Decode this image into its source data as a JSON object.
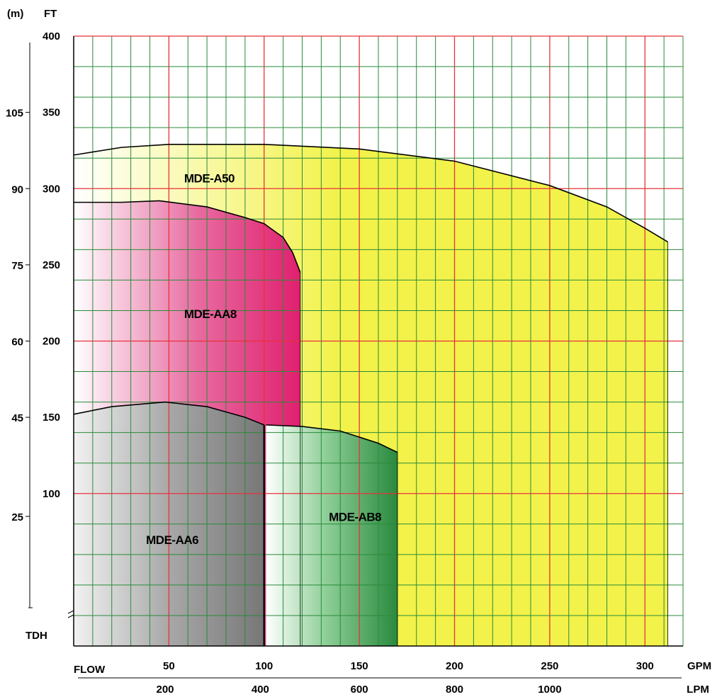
{
  "chart_data": {
    "type": "area",
    "colors": {
      "major_grid": "#e8323a",
      "minor_grid": "#2a8a3a",
      "a50": "#f2f24a",
      "aa8": "#e0206e",
      "aa6": "#777777",
      "ab8": "#2a8a3e",
      "outline": "#000000"
    },
    "units": {
      "head_m": "(m)",
      "head_ft": "FT",
      "flow_gpm": "GPM",
      "flow_lpm": "LPM",
      "flow_label": "FLOW",
      "tdh_label": "TDH"
    },
    "x_gpm": {
      "range": [
        0,
        320
      ],
      "ticks": [
        50,
        100,
        150,
        200,
        250,
        300
      ]
    },
    "y_ft": {
      "range": [
        0,
        400
      ],
      "ticks": [
        100,
        150,
        200,
        250,
        300,
        350,
        400
      ],
      "tick_labels": [
        "100",
        "150",
        "200",
        "250",
        "300",
        "350",
        "400"
      ]
    },
    "x_lpm_ticks": [
      {
        "gpm": 48,
        "label": "200"
      },
      {
        "gpm": 98,
        "label": "400"
      },
      {
        "gpm": 150,
        "label": "600"
      },
      {
        "gpm": 200,
        "label": "800"
      },
      {
        "gpm": 250,
        "label": "1000"
      },
      {
        "gpm": 300,
        "label": "LPM"
      }
    ],
    "y_m_ticks": [
      {
        "ft": 350,
        "label": "105"
      },
      {
        "ft": 300,
        "label": "90"
      },
      {
        "ft": 250,
        "label": "75"
      },
      {
        "ft": 200,
        "label": "60"
      },
      {
        "ft": 150,
        "label": "45"
      },
      {
        "ft": 85,
        "label": "25"
      }
    ],
    "series": [
      {
        "name": "MDE-A50",
        "color_key": "a50",
        "label_at": [
          58,
          304
        ],
        "curve": [
          [
            0,
            322
          ],
          [
            25,
            327
          ],
          [
            50,
            329
          ],
          [
            100,
            329
          ],
          [
            150,
            326
          ],
          [
            200,
            318
          ],
          [
            250,
            302
          ],
          [
            280,
            288
          ],
          [
            300,
            274
          ],
          [
            312,
            265
          ]
        ],
        "x_end": 312
      },
      {
        "name": "MDE-AA8",
        "color_key": "aa8",
        "label_at": [
          58,
          215
        ],
        "curve": [
          [
            0,
            291
          ],
          [
            25,
            291
          ],
          [
            45,
            292
          ],
          [
            70,
            288
          ],
          [
            90,
            281
          ],
          [
            100,
            277
          ],
          [
            110,
            268
          ],
          [
            115,
            258
          ],
          [
            119,
            245
          ]
        ],
        "x_end": 119
      },
      {
        "name": "MDE-AA6",
        "color_key": "aa6",
        "label_at": [
          38,
          67
        ],
        "curve": [
          [
            0,
            152
          ],
          [
            20,
            157
          ],
          [
            48,
            160
          ],
          [
            70,
            157
          ],
          [
            90,
            150
          ],
          [
            100,
            145
          ]
        ],
        "x_end": 100
      },
      {
        "name": "MDE-AB8",
        "color_key": "ab8",
        "label_at": [
          134,
          82
        ],
        "curve": [
          [
            101,
            145
          ],
          [
            120,
            144
          ],
          [
            140,
            141
          ],
          [
            160,
            133
          ],
          [
            170,
            127
          ]
        ],
        "x_end": 170
      }
    ]
  }
}
